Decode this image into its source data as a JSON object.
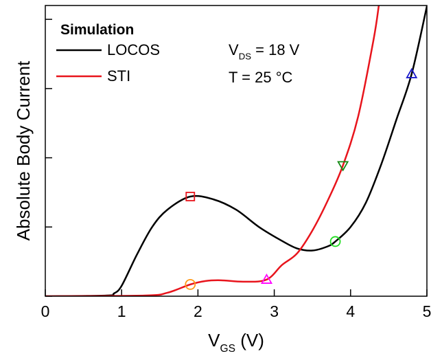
{
  "chart_data": {
    "type": "line",
    "ylabel": "Absolute Body Current",
    "xlabel": {
      "main": "V",
      "sub": "GS",
      "rest": " (V)"
    },
    "xlim": [
      0,
      5
    ],
    "ylim": [
      0,
      4.2
    ],
    "xticks": [
      0,
      1,
      2,
      3,
      4,
      5
    ],
    "yticks": [
      0,
      1,
      2,
      3,
      4
    ],
    "legend_title": "Simulation",
    "legend_position": "upper left",
    "annotations": [
      {
        "main": "V",
        "sub": "DS",
        "rest": " = 18 V"
      },
      {
        "main": "T = 25 °C"
      }
    ],
    "series": [
      {
        "name": "LOCOS",
        "color": "#000000",
        "x": [
          0,
          0.8,
          0.9,
          1.0,
          1.2,
          1.4,
          1.6,
          1.9,
          2.2,
          2.5,
          2.8,
          3.1,
          3.3,
          3.5,
          3.7,
          3.8,
          4.0,
          4.2,
          4.4,
          4.6,
          4.8,
          5.0
        ],
        "values": [
          0,
          0.01,
          0.04,
          0.15,
          0.6,
          1.0,
          1.25,
          1.44,
          1.4,
          1.25,
          1.0,
          0.8,
          0.69,
          0.66,
          0.72,
          0.79,
          1.0,
          1.35,
          1.9,
          2.55,
          3.21,
          4.19
        ]
      },
      {
        "name": "STI",
        "color": "#e8141c",
        "x": [
          0,
          1.3,
          1.6,
          1.9,
          2.1,
          2.3,
          2.6,
          2.9,
          3.1,
          3.3,
          3.5,
          3.7,
          3.9,
          4.1,
          4.3,
          4.37
        ],
        "values": [
          0,
          0.01,
          0.05,
          0.17,
          0.22,
          0.23,
          0.21,
          0.24,
          0.45,
          0.62,
          0.95,
          1.38,
          1.89,
          2.6,
          3.7,
          4.2
        ]
      }
    ],
    "markers": [
      {
        "shape": "square",
        "color": "#e8141c",
        "x": 1.9,
        "y": 1.44
      },
      {
        "shape": "circle",
        "color": "#ff9a1a",
        "x": 1.9,
        "y": 0.17
      },
      {
        "shape": "triangle-up",
        "color": "#ff00ff",
        "x": 2.9,
        "y": 0.24
      },
      {
        "shape": "circle",
        "color": "#22dd22",
        "x": 3.8,
        "y": 0.79
      },
      {
        "shape": "triangle-down",
        "color": "#118811",
        "x": 3.9,
        "y": 1.89
      },
      {
        "shape": "triangle-up",
        "color": "#1a1acc",
        "x": 4.8,
        "y": 3.21
      }
    ]
  }
}
